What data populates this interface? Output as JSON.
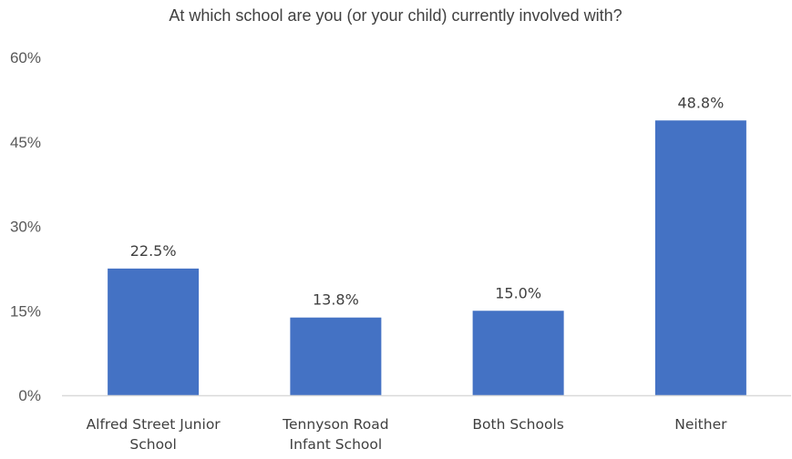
{
  "chart_data": {
    "type": "bar",
    "title": "At which school are you (or your child) currently involved with?",
    "xlabel": "",
    "ylabel": "",
    "categories": [
      [
        "Alfred Street Junior",
        "School"
      ],
      [
        "Tennyson Road",
        "Infant School"
      ],
      [
        "Both Schools"
      ],
      [
        "Neither"
      ]
    ],
    "values": [
      22.5,
      13.8,
      15.0,
      48.8
    ],
    "data_labels": [
      "22.5%",
      "13.8%",
      "15.0%",
      "48.8%"
    ],
    "ylim": [
      0,
      60
    ],
    "yticks": [
      0,
      15,
      30,
      45,
      60
    ],
    "ytick_labels": [
      "0%",
      "15%",
      "30%",
      "45%",
      "60%"
    ],
    "grid": false,
    "legend": "none",
    "bar_color": "#4472C4",
    "axis_color": "#D9D9D9"
  }
}
